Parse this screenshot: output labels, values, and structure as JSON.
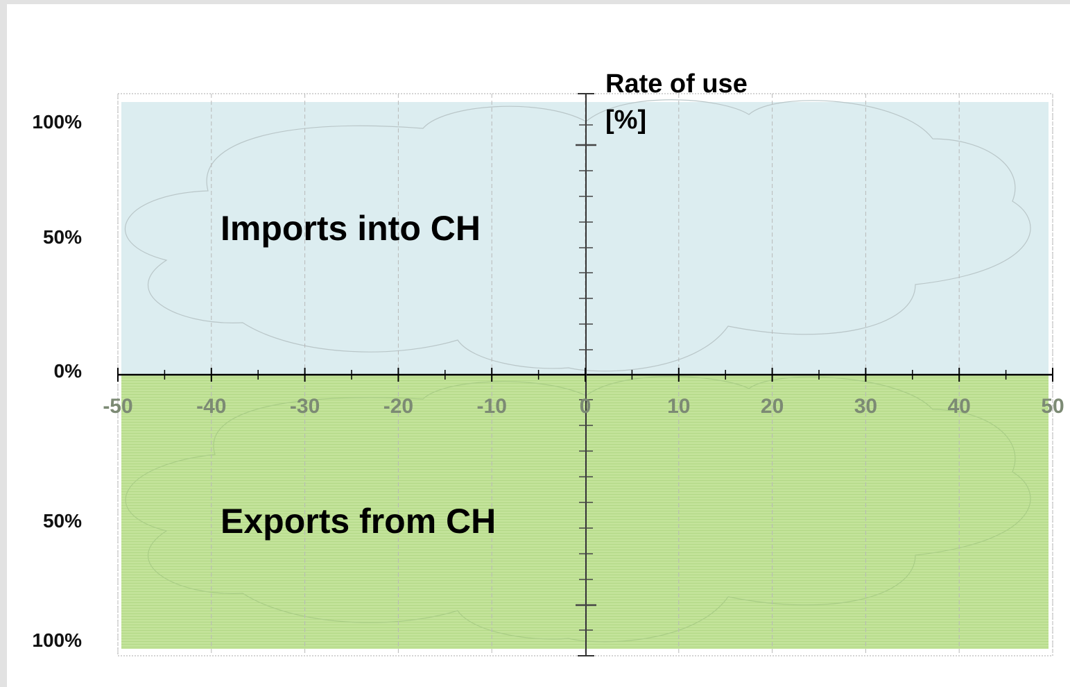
{
  "axis": {
    "title_line1": "Rate of use",
    "title_line2": "[%]",
    "x_tick_labels": [
      "-50",
      "-40",
      "-30",
      "-20",
      "-10",
      "0",
      "10",
      "20",
      "30",
      "40",
      "50"
    ],
    "y_tick_labels": [
      "100%",
      "50%",
      "0%",
      "50%",
      "100%"
    ]
  },
  "regions": {
    "upper": "Imports into CH",
    "lower": "Exports from CH"
  }
}
